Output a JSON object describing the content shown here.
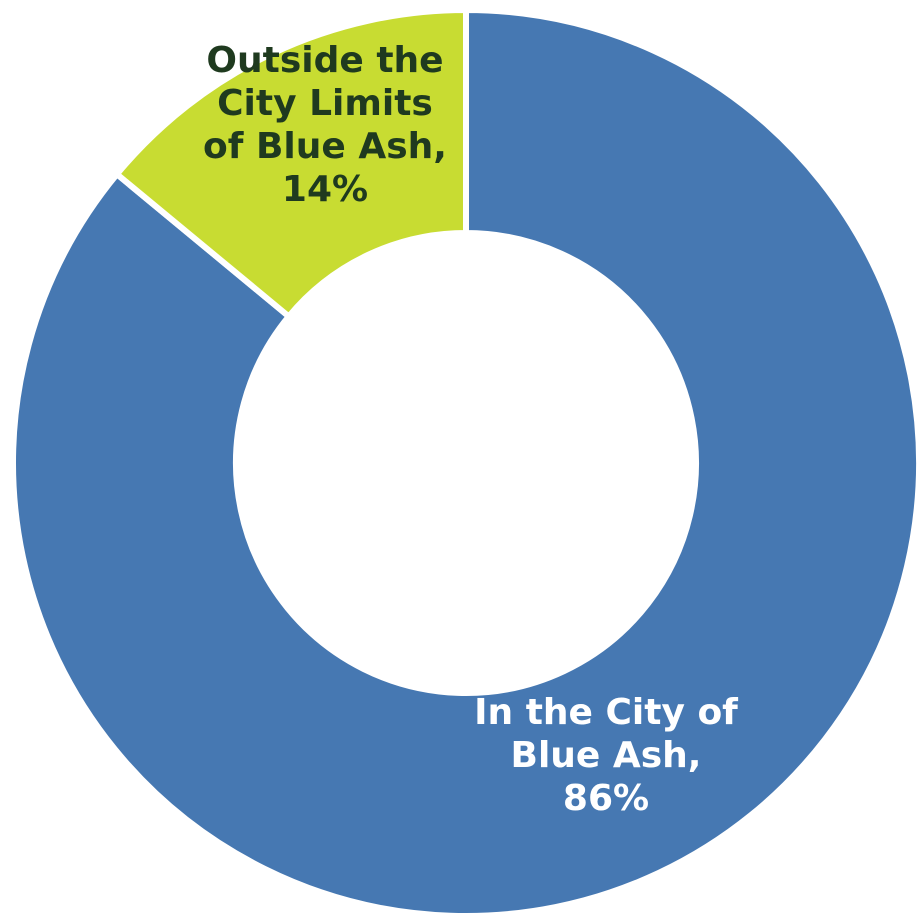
{
  "chart_data": {
    "type": "pie",
    "donut": true,
    "title": "",
    "slices": [
      {
        "label_lines": [
          "In the City of",
          "Blue Ash,",
          "86%"
        ],
        "value": 86,
        "color": "#4678B2",
        "label_color": "#FFFFFF"
      },
      {
        "label_lines": [
          "Outside the",
          "City Limits",
          "of Blue Ash,",
          "14%"
        ],
        "value": 14,
        "color": "#C8DC32",
        "label_color": "#1F3A1F"
      }
    ],
    "separator_color": "#FFFFFF"
  }
}
